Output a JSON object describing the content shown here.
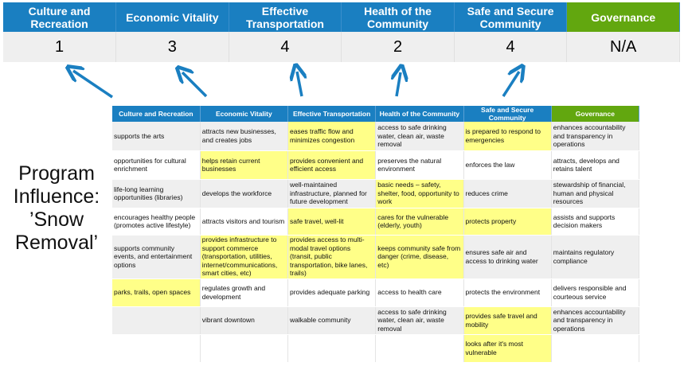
{
  "colors": {
    "blue": "#1a7fc1",
    "green": "#62a70f",
    "highlight": "#ffff88"
  },
  "summary": {
    "headers": [
      "Culture and Recreation",
      "Economic Vitality",
      "Effective Transportation",
      "Health of the Community",
      "Safe and Secure Community",
      "Governance"
    ],
    "values": [
      "1",
      "3",
      "4",
      "2",
      "4",
      "N/A"
    ]
  },
  "label": {
    "line1": "Program",
    "line2": "Influence:",
    "line3": "’Snow",
    "line4": "Removal’"
  },
  "grid": {
    "headers": [
      "Culture and Recreation",
      "Economic Vitality",
      "Effective Transportation",
      "Health of the Community",
      "Safe and Secure Community",
      "Governance"
    ],
    "rows": [
      [
        "supports the arts",
        "attracts new businesses, and creates jobs",
        "eases traffic flow and minimizes congestion",
        "access to safe drinking water, clean air, waste removal",
        "is prepared to respond to emergencies",
        "enhances accountability and transparency in operations"
      ],
      [
        "opportunities for cultural enrichment",
        "helps retain current businesses",
        "provides convenient and efficient access",
        "preserves the natural environment",
        "enforces the law",
        "attracts, develops and retains talent"
      ],
      [
        "life-long learning opportunities (libraries)",
        "develops the workforce",
        "well-maintained infrastructure, planned for future development",
        "basic needs – safety, shelter, food, opportunity to work",
        "reduces crime",
        "stewardship of financial, human and physical resources"
      ],
      [
        "encourages healthy people (promotes active lifestyle)",
        "attracts visitors and tourism",
        "safe travel, well-lit",
        "cares for the vulnerable (elderly, youth)",
        "protects property",
        "assists and supports decision makers"
      ],
      [
        "supports community events, and entertainment options",
        "provides infrastructure to support commerce (transportation, utilities, internet/communications, smart cities, etc)",
        "provides access to multi-modal travel options (transit, public transportation, bike lanes, trails)",
        "keeps community safe from danger (crime, disease, etc)",
        "ensures safe air and access to drinking water",
        "maintains regulatory compliance"
      ],
      [
        "parks, trails, open spaces",
        "regulates growth and development",
        "provides adequate parking",
        "access to health care",
        "protects the environment",
        "delivers responsible and courteous service"
      ],
      [
        "",
        "vibrant downtown",
        "walkable community",
        "access to safe drinking water, clean air, waste removal",
        "provides safe travel and mobility",
        "enhances accountability and transparency in operations"
      ],
      [
        "",
        "",
        "",
        "",
        "looks after it's most vulnerable",
        ""
      ]
    ],
    "highlighted": [
      [
        0,
        2
      ],
      [
        0,
        4
      ],
      [
        1,
        1
      ],
      [
        1,
        2
      ],
      [
        2,
        3
      ],
      [
        3,
        2
      ],
      [
        3,
        3
      ],
      [
        3,
        4
      ],
      [
        4,
        1
      ],
      [
        4,
        2
      ],
      [
        4,
        3
      ],
      [
        5,
        0
      ],
      [
        6,
        4
      ],
      [
        7,
        4
      ]
    ]
  }
}
